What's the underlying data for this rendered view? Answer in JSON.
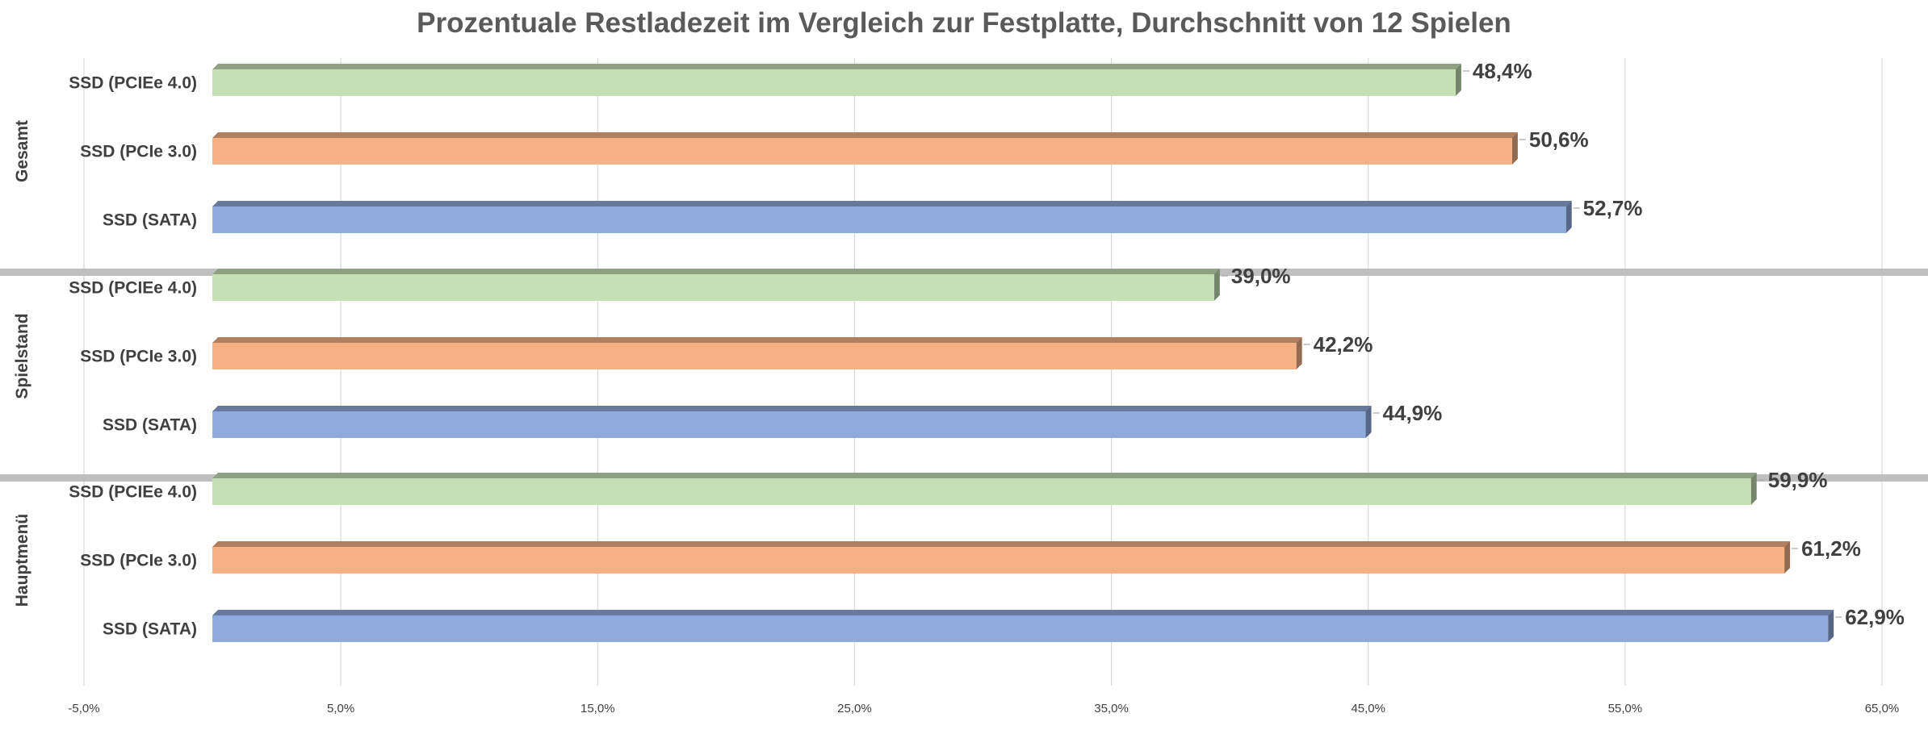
{
  "chart_data": {
    "type": "bar",
    "orientation": "horizontal",
    "title": "Prozentuale Restladezeit im Vergleich zur Festplatte, Durchschnitt von 12 Spielen",
    "xlim": [
      -5,
      65
    ],
    "x_ticks": [
      -5,
      5,
      15,
      25,
      35,
      45,
      55,
      65
    ],
    "x_tick_labels": [
      "-5,0%",
      "5,0%",
      "15,0%",
      "25,0%",
      "35,0%",
      "45,0%",
      "55,0%",
      "65,0%"
    ],
    "grid": true,
    "categories": [
      "SSD (PCIEe 4.0)",
      "SSD (PCIe 3.0)",
      "SSD (SATA)"
    ],
    "groups": [
      {
        "name": "Gesamt",
        "bars": [
          {
            "category": "SSD (PCIEe 4.0)",
            "value": 48.4,
            "label": "48,4%",
            "color": "#c5e0b4"
          },
          {
            "category": "SSD (PCIe 3.0)",
            "value": 50.6,
            "label": "50,6%",
            "color": "#f4b183"
          },
          {
            "category": "SSD (SATA)",
            "value": 52.7,
            "label": "52,7%",
            "color": "#8faadc"
          }
        ]
      },
      {
        "name": "Spielstand",
        "bars": [
          {
            "category": "SSD (PCIEe 4.0)",
            "value": 39.0,
            "label": "39,0%",
            "color": "#c5e0b4"
          },
          {
            "category": "SSD (PCIe 3.0)",
            "value": 42.2,
            "label": "42,2%",
            "color": "#f4b183"
          },
          {
            "category": "SSD (SATA)",
            "value": 44.9,
            "label": "44,9%",
            "color": "#8faadc"
          }
        ]
      },
      {
        "name": "Hauptmenü",
        "bars": [
          {
            "category": "SSD (PCIEe 4.0)",
            "value": 59.9,
            "label": "59,9%",
            "color": "#c5e0b4"
          },
          {
            "category": "SSD (PCIe 3.0)",
            "value": 61.2,
            "label": "61,2%",
            "color": "#f4b183"
          },
          {
            "category": "SSD (SATA)",
            "value": 62.9,
            "label": "62,9%",
            "color": "#8faadc"
          }
        ]
      }
    ]
  }
}
